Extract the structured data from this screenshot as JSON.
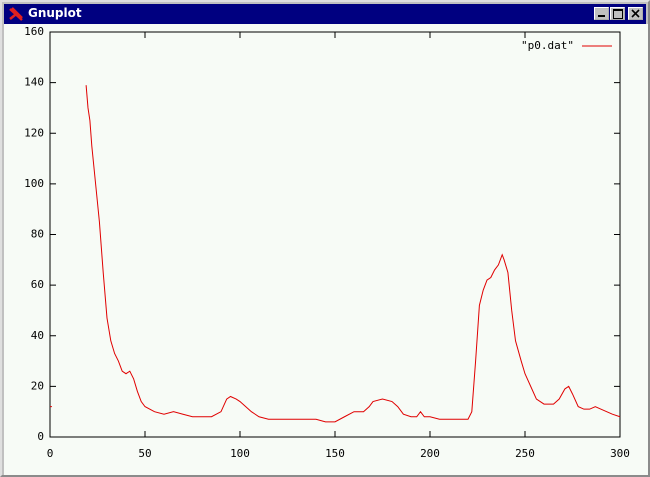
{
  "window": {
    "title": "Gnuplot"
  },
  "chart_data": {
    "type": "line",
    "x": [
      0,
      1,
      10,
      19,
      20,
      21,
      22,
      24,
      26,
      28,
      30,
      32,
      34,
      36,
      38,
      40,
      42,
      44,
      46,
      48,
      50,
      55,
      60,
      65,
      70,
      75,
      80,
      85,
      90,
      93,
      95,
      98,
      100,
      103,
      106,
      110,
      115,
      120,
      125,
      130,
      135,
      140,
      145,
      150,
      155,
      160,
      165,
      168,
      170,
      175,
      180,
      183,
      186,
      190,
      193,
      195,
      197,
      200,
      205,
      210,
      215,
      220,
      222,
      224,
      226,
      228,
      230,
      232,
      234,
      236,
      238,
      239,
      241,
      243,
      245,
      248,
      250,
      253,
      256,
      260,
      265,
      268,
      271,
      273,
      275,
      278,
      281,
      284,
      287,
      290,
      293,
      296,
      300
    ],
    "series": [
      {
        "name": "\"p0.dat\"",
        "color": "#e00000",
        "values": [
          12,
          12,
          null,
          139,
          130,
          125,
          115,
          100,
          85,
          65,
          47,
          38,
          33,
          30,
          26,
          25,
          26,
          23,
          18,
          14,
          12,
          10,
          9,
          10,
          9,
          8,
          8,
          8,
          10,
          15,
          16,
          15,
          14,
          12,
          10,
          8,
          7,
          7,
          7,
          7,
          7,
          7,
          6,
          6,
          8,
          10,
          10,
          12,
          14,
          15,
          14,
          12,
          9,
          8,
          8,
          10,
          8,
          8,
          7,
          7,
          7,
          7,
          10,
          30,
          52,
          58,
          62,
          63,
          66,
          68,
          72,
          70,
          65,
          50,
          38,
          30,
          25,
          20,
          15,
          13,
          13,
          15,
          19,
          20,
          17,
          12,
          11,
          11,
          12,
          11,
          10,
          9,
          8
        ]
      }
    ],
    "xlim": [
      0,
      300
    ],
    "xticks": [
      0,
      50,
      100,
      150,
      200,
      250,
      300
    ],
    "ylim": [
      0,
      160
    ],
    "yticks": [
      0,
      20,
      40,
      60,
      80,
      100,
      120,
      140,
      160
    ],
    "legend": "top-right"
  }
}
